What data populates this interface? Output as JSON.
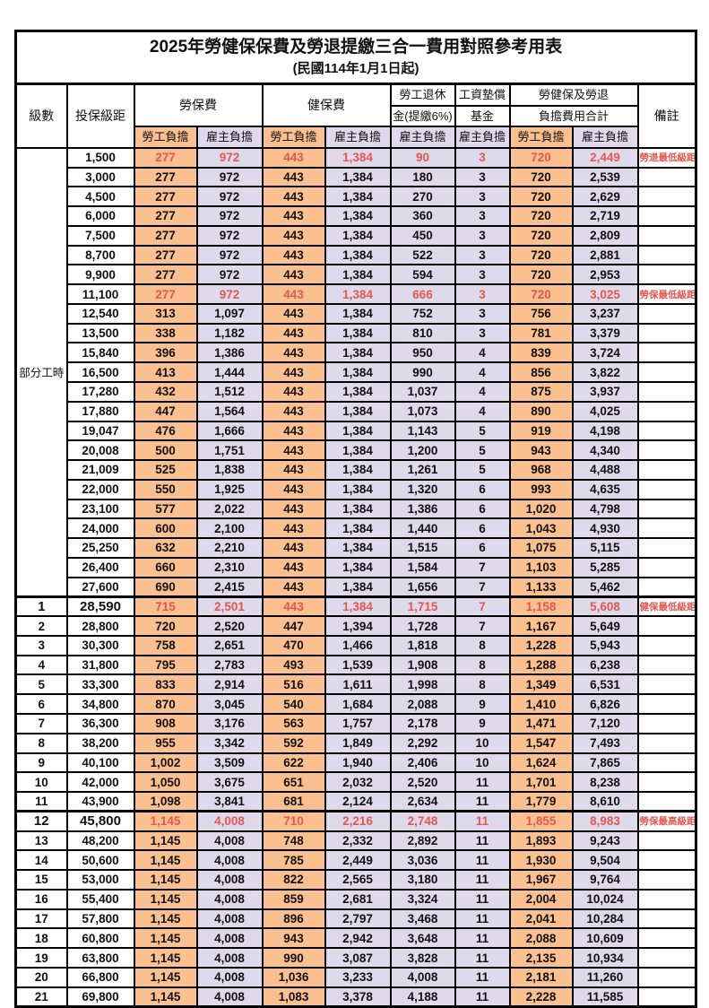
{
  "title": "2025年勞健保保費及勞退提繳三合一費用對照參考用表",
  "subtitle": "(民國114年1月1日起)",
  "header": {
    "level": "級數",
    "bracket": "投保級距",
    "labor_insurance": "勞保費",
    "health_insurance": "健保費",
    "pension_line1": "勞工退休",
    "pension_line2": "金(提繳6%)",
    "wage_fund_line1": "工資墊償",
    "wage_fund_line2": "基金",
    "total_line1": "勞健保及勞退",
    "total_line2": "負擔費用合計",
    "remark": "備註",
    "employee_share": "勞工負擔",
    "employer_share": "雇主負擔"
  },
  "colors": {
    "employee_bg": "#FAC08F",
    "employer_bg": "#DFD9EC",
    "highlight_red": "#E4574F",
    "border": "#000000"
  },
  "part_time": {
    "label": "部分工時",
    "span": 23
  },
  "rows": [
    {
      "level": null,
      "bracket": "1,500",
      "v": [
        "277",
        "972",
        "443",
        "1,384",
        "90",
        "3",
        "720",
        "2,449"
      ],
      "remark": "勞退最低級距",
      "red": true,
      "bold": false
    },
    {
      "level": null,
      "bracket": "3,000",
      "v": [
        "277",
        "972",
        "443",
        "1,384",
        "180",
        "3",
        "720",
        "2,539"
      ],
      "remark": "",
      "red": false,
      "bold": false
    },
    {
      "level": null,
      "bracket": "4,500",
      "v": [
        "277",
        "972",
        "443",
        "1,384",
        "270",
        "3",
        "720",
        "2,629"
      ],
      "remark": "",
      "red": false,
      "bold": false
    },
    {
      "level": null,
      "bracket": "6,000",
      "v": [
        "277",
        "972",
        "443",
        "1,384",
        "360",
        "3",
        "720",
        "2,719"
      ],
      "remark": "",
      "red": false,
      "bold": false
    },
    {
      "level": null,
      "bracket": "7,500",
      "v": [
        "277",
        "972",
        "443",
        "1,384",
        "450",
        "3",
        "720",
        "2,809"
      ],
      "remark": "",
      "red": false,
      "bold": false
    },
    {
      "level": null,
      "bracket": "8,700",
      "v": [
        "277",
        "972",
        "443",
        "1,384",
        "522",
        "3",
        "720",
        "2,881"
      ],
      "remark": "",
      "red": false,
      "bold": false
    },
    {
      "level": null,
      "bracket": "9,900",
      "v": [
        "277",
        "972",
        "443",
        "1,384",
        "594",
        "3",
        "720",
        "2,953"
      ],
      "remark": "",
      "red": false,
      "bold": false
    },
    {
      "level": null,
      "bracket": "11,100",
      "v": [
        "277",
        "972",
        "443",
        "1,384",
        "666",
        "3",
        "720",
        "3,025"
      ],
      "remark": "勞保最低級距",
      "red": true,
      "bold": false
    },
    {
      "level": null,
      "bracket": "12,540",
      "v": [
        "313",
        "1,097",
        "443",
        "1,384",
        "752",
        "3",
        "756",
        "3,237"
      ],
      "remark": "",
      "red": false,
      "bold": false
    },
    {
      "level": null,
      "bracket": "13,500",
      "v": [
        "338",
        "1,182",
        "443",
        "1,384",
        "810",
        "3",
        "781",
        "3,379"
      ],
      "remark": "",
      "red": false,
      "bold": false
    },
    {
      "level": null,
      "bracket": "15,840",
      "v": [
        "396",
        "1,386",
        "443",
        "1,384",
        "950",
        "4",
        "839",
        "3,724"
      ],
      "remark": "",
      "red": false,
      "bold": false
    },
    {
      "level": null,
      "bracket": "16,500",
      "v": [
        "413",
        "1,444",
        "443",
        "1,384",
        "990",
        "4",
        "856",
        "3,822"
      ],
      "remark": "",
      "red": false,
      "bold": false
    },
    {
      "level": null,
      "bracket": "17,280",
      "v": [
        "432",
        "1,512",
        "443",
        "1,384",
        "1,037",
        "4",
        "875",
        "3,937"
      ],
      "remark": "",
      "red": false,
      "bold": false
    },
    {
      "level": null,
      "bracket": "17,880",
      "v": [
        "447",
        "1,564",
        "443",
        "1,384",
        "1,073",
        "4",
        "890",
        "4,025"
      ],
      "remark": "",
      "red": false,
      "bold": false
    },
    {
      "level": null,
      "bracket": "19,047",
      "v": [
        "476",
        "1,666",
        "443",
        "1,384",
        "1,143",
        "5",
        "919",
        "4,198"
      ],
      "remark": "",
      "red": false,
      "bold": false
    },
    {
      "level": null,
      "bracket": "20,008",
      "v": [
        "500",
        "1,751",
        "443",
        "1,384",
        "1,200",
        "5",
        "943",
        "4,340"
      ],
      "remark": "",
      "red": false,
      "bold": false
    },
    {
      "level": null,
      "bracket": "21,009",
      "v": [
        "525",
        "1,838",
        "443",
        "1,384",
        "1,261",
        "5",
        "968",
        "4,488"
      ],
      "remark": "",
      "red": false,
      "bold": false
    },
    {
      "level": null,
      "bracket": "22,000",
      "v": [
        "550",
        "1,925",
        "443",
        "1,384",
        "1,320",
        "6",
        "993",
        "4,635"
      ],
      "remark": "",
      "red": false,
      "bold": false
    },
    {
      "level": null,
      "bracket": "23,100",
      "v": [
        "577",
        "2,022",
        "443",
        "1,384",
        "1,386",
        "6",
        "1,020",
        "4,798"
      ],
      "remark": "",
      "red": false,
      "bold": false
    },
    {
      "level": null,
      "bracket": "24,000",
      "v": [
        "600",
        "2,100",
        "443",
        "1,384",
        "1,440",
        "6",
        "1,043",
        "4,930"
      ],
      "remark": "",
      "red": false,
      "bold": false
    },
    {
      "level": null,
      "bracket": "25,250",
      "v": [
        "632",
        "2,210",
        "443",
        "1,384",
        "1,515",
        "6",
        "1,075",
        "5,115"
      ],
      "remark": "",
      "red": false,
      "bold": false
    },
    {
      "level": null,
      "bracket": "26,400",
      "v": [
        "660",
        "2,310",
        "443",
        "1,384",
        "1,584",
        "7",
        "1,103",
        "5,285"
      ],
      "remark": "",
      "red": false,
      "bold": false
    },
    {
      "level": null,
      "bracket": "27,600",
      "v": [
        "690",
        "2,415",
        "443",
        "1,384",
        "1,656",
        "7",
        "1,133",
        "5,462"
      ],
      "remark": "",
      "red": false,
      "bold": false
    },
    {
      "level": "1",
      "bracket": "28,590",
      "v": [
        "715",
        "2,501",
        "443",
        "1,384",
        "1,715",
        "7",
        "1,158",
        "5,608"
      ],
      "remark": "健保最低級距",
      "red": true,
      "bold": true
    },
    {
      "level": "2",
      "bracket": "28,800",
      "v": [
        "720",
        "2,520",
        "447",
        "1,394",
        "1,728",
        "7",
        "1,167",
        "5,649"
      ],
      "remark": "",
      "red": false,
      "bold": false
    },
    {
      "level": "3",
      "bracket": "30,300",
      "v": [
        "758",
        "2,651",
        "470",
        "1,466",
        "1,818",
        "8",
        "1,228",
        "5,943"
      ],
      "remark": "",
      "red": false,
      "bold": false
    },
    {
      "level": "4",
      "bracket": "31,800",
      "v": [
        "795",
        "2,783",
        "493",
        "1,539",
        "1,908",
        "8",
        "1,288",
        "6,238"
      ],
      "remark": "",
      "red": false,
      "bold": false
    },
    {
      "level": "5",
      "bracket": "33,300",
      "v": [
        "833",
        "2,914",
        "516",
        "1,611",
        "1,998",
        "8",
        "1,349",
        "6,531"
      ],
      "remark": "",
      "red": false,
      "bold": false
    },
    {
      "level": "6",
      "bracket": "34,800",
      "v": [
        "870",
        "3,045",
        "540",
        "1,684",
        "2,088",
        "9",
        "1,410",
        "6,826"
      ],
      "remark": "",
      "red": false,
      "bold": false
    },
    {
      "level": "7",
      "bracket": "36,300",
      "v": [
        "908",
        "3,176",
        "563",
        "1,757",
        "2,178",
        "9",
        "1,471",
        "7,120"
      ],
      "remark": "",
      "red": false,
      "bold": false
    },
    {
      "level": "8",
      "bracket": "38,200",
      "v": [
        "955",
        "3,342",
        "592",
        "1,849",
        "2,292",
        "10",
        "1,547",
        "7,493"
      ],
      "remark": "",
      "red": false,
      "bold": false
    },
    {
      "level": "9",
      "bracket": "40,100",
      "v": [
        "1,002",
        "3,509",
        "622",
        "1,940",
        "2,406",
        "10",
        "1,624",
        "7,865"
      ],
      "remark": "",
      "red": false,
      "bold": false
    },
    {
      "level": "10",
      "bracket": "42,000",
      "v": [
        "1,050",
        "3,675",
        "651",
        "2,032",
        "2,520",
        "11",
        "1,701",
        "8,238"
      ],
      "remark": "",
      "red": false,
      "bold": false
    },
    {
      "level": "11",
      "bracket": "43,900",
      "v": [
        "1,098",
        "3,841",
        "681",
        "2,124",
        "2,634",
        "11",
        "1,779",
        "8,610"
      ],
      "remark": "",
      "red": false,
      "bold": false
    },
    {
      "level": "12",
      "bracket": "45,800",
      "v": [
        "1,145",
        "4,008",
        "710",
        "2,216",
        "2,748",
        "11",
        "1,855",
        "8,983"
      ],
      "remark": "勞保最高級距",
      "red": true,
      "bold": true
    },
    {
      "level": "13",
      "bracket": "48,200",
      "v": [
        "1,145",
        "4,008",
        "748",
        "2,332",
        "2,892",
        "11",
        "1,893",
        "9,243"
      ],
      "remark": "",
      "red": false,
      "bold": false
    },
    {
      "level": "14",
      "bracket": "50,600",
      "v": [
        "1,145",
        "4,008",
        "785",
        "2,449",
        "3,036",
        "11",
        "1,930",
        "9,504"
      ],
      "remark": "",
      "red": false,
      "bold": false
    },
    {
      "level": "15",
      "bracket": "53,000",
      "v": [
        "1,145",
        "4,008",
        "822",
        "2,565",
        "3,180",
        "11",
        "1,967",
        "9,764"
      ],
      "remark": "",
      "red": false,
      "bold": false
    },
    {
      "level": "16",
      "bracket": "55,400",
      "v": [
        "1,145",
        "4,008",
        "859",
        "2,681",
        "3,324",
        "11",
        "2,004",
        "10,024"
      ],
      "remark": "",
      "red": false,
      "bold": false
    },
    {
      "level": "17",
      "bracket": "57,800",
      "v": [
        "1,145",
        "4,008",
        "896",
        "2,797",
        "3,468",
        "11",
        "2,041",
        "10,284"
      ],
      "remark": "",
      "red": false,
      "bold": false
    },
    {
      "level": "18",
      "bracket": "60,800",
      "v": [
        "1,145",
        "4,008",
        "943",
        "2,942",
        "3,648",
        "11",
        "2,088",
        "10,609"
      ],
      "remark": "",
      "red": false,
      "bold": false
    },
    {
      "level": "19",
      "bracket": "63,800",
      "v": [
        "1,145",
        "4,008",
        "990",
        "3,087",
        "3,828",
        "11",
        "2,135",
        "10,934"
      ],
      "remark": "",
      "red": false,
      "bold": false
    },
    {
      "level": "20",
      "bracket": "66,800",
      "v": [
        "1,145",
        "4,008",
        "1,036",
        "3,233",
        "4,008",
        "11",
        "2,181",
        "11,260"
      ],
      "remark": "",
      "red": false,
      "bold": false
    },
    {
      "level": "21",
      "bracket": "69,800",
      "v": [
        "1,145",
        "4,008",
        "1,083",
        "3,378",
        "4,188",
        "11",
        "2,228",
        "11,585"
      ],
      "remark": "",
      "red": false,
      "bold": false
    }
  ]
}
